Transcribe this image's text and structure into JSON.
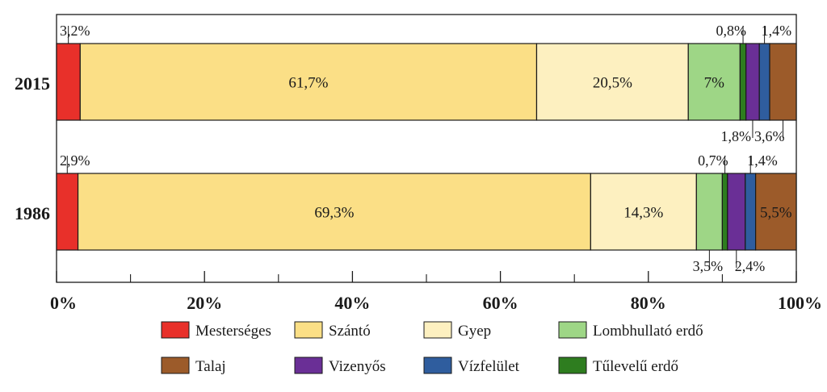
{
  "chart_data": {
    "type": "bar",
    "orientation": "horizontal",
    "stacked": "percent",
    "categories": [
      "2015",
      "1986"
    ],
    "xlim": [
      0,
      100
    ],
    "x_ticks": [
      "0%",
      "20%",
      "40%",
      "60%",
      "80%",
      "100%"
    ],
    "minor_ticks": [
      10,
      30,
      50,
      70,
      90
    ],
    "legend_position": "bottom",
    "series": [
      {
        "name": "Mesterséges",
        "color": "#e8302a",
        "values": [
          3.2,
          2.9
        ],
        "labels": [
          "3,2%",
          "2,9%"
        ]
      },
      {
        "name": "Szántó",
        "color": "#fbdf86",
        "values": [
          61.7,
          69.3
        ],
        "labels": [
          "61,7%",
          "69,3%"
        ]
      },
      {
        "name": "Gyep",
        "color": "#fdf0c0",
        "values": [
          20.5,
          14.3
        ],
        "labels": [
          "20,5%",
          "14,3%"
        ]
      },
      {
        "name": "Lombhullató erdő",
        "color": "#9ed686",
        "values": [
          7.0,
          3.5
        ],
        "labels": [
          "7%",
          "3,5%"
        ]
      },
      {
        "name": "Tűlevelű erdő",
        "color": "#2e7d1f",
        "values": [
          0.8,
          0.7
        ],
        "labels": [
          "0,8%",
          "0,7%"
        ]
      },
      {
        "name": "Vizenyős",
        "color": "#6a2f96",
        "values": [
          1.8,
          2.4
        ],
        "labels": [
          "1,8%",
          "2,4%"
        ]
      },
      {
        "name": "Vízfelület",
        "color": "#2f5d9e",
        "values": [
          1.4,
          1.4
        ],
        "labels": [
          "1,4%",
          "1,4%"
        ]
      },
      {
        "name": "Talaj",
        "color": "#9c5b2a",
        "values": [
          3.6,
          5.5
        ],
        "labels": [
          "3,6%",
          "5,5%"
        ]
      }
    ],
    "legend_order": [
      "Mesterséges",
      "Szántó",
      "Gyep",
      "Lombhullató erdő",
      "Talaj",
      "Vizenyős",
      "Vízfelület",
      "Tűlevelű erdő"
    ]
  }
}
